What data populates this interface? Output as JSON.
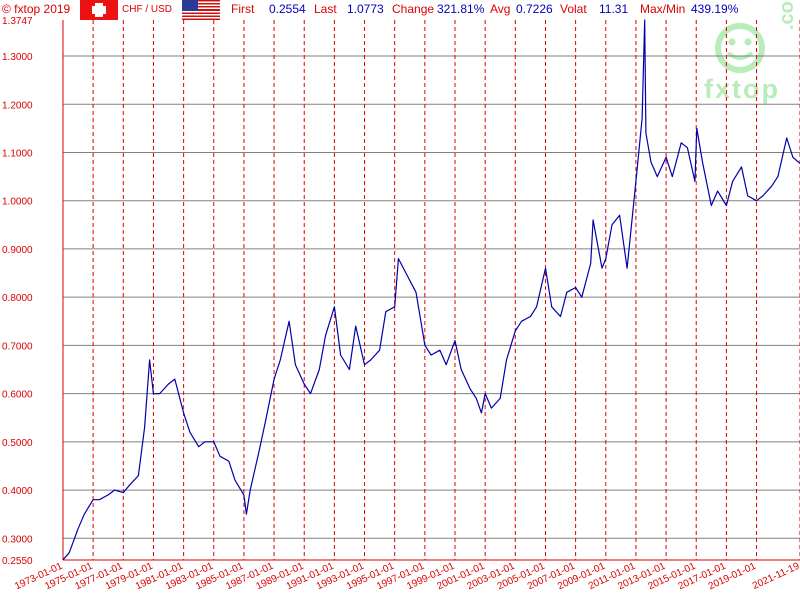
{
  "header": {
    "copyright": "© fxtop 2019",
    "pair": "CHF / USD",
    "first_label": "First",
    "first_value": "0.2554",
    "last_label": "Last",
    "last_value": "1.0773",
    "change_label": "Change",
    "change_value": "321.81%",
    "avg_label": "Avg",
    "avg_value": "0.7226",
    "volat_label": "Volat",
    "volat_value": "11.31",
    "maxmin_label": "Max/Min",
    "maxmin_value": "439.19%",
    "flag_left": "swiss-flag-icon",
    "flag_right": "us-flag-icon"
  },
  "logo": {
    "text": "fxtop",
    "suffix": ".com",
    "icon": "smiley-face-icon"
  },
  "colors": {
    "line": "#0000aa",
    "axis_text": "#dd0000",
    "vgrid": "#dd0000",
    "hgrid": "#808080",
    "logo": "#b8ecb8"
  },
  "chart_data": {
    "type": "line",
    "title": "",
    "xlabel": "",
    "ylabel": "",
    "ylim": [
      0.255,
      1.3747
    ],
    "xlim": [
      "1973-01-01",
      "2021-11-19"
    ],
    "yticks": [
      "1.3747",
      "1.3000",
      "1.2000",
      "1.1000",
      "1.0000",
      "0.9000",
      "0.8000",
      "0.7000",
      "0.6000",
      "0.5000",
      "0.4000",
      "0.3000",
      "0.2550"
    ],
    "xticks": [
      "1973-01-01",
      "1975-01-01",
      "1977-01-01",
      "1979-01-01",
      "1981-01-01",
      "1983-01-01",
      "1985-01-01",
      "1987-01-01",
      "1989-01-01",
      "1991-01-01",
      "1993-01-01",
      "1995-01-01",
      "1997-01-01",
      "1999-01-01",
      "2001-01-01",
      "2003-01-01",
      "2005-01-01",
      "2007-01-01",
      "2009-01-01",
      "2011-01-01",
      "2013-01-01",
      "2015-01-01",
      "2017-01-01",
      "2019-01-01",
      "2021-11-19"
    ],
    "grid": true,
    "series": [
      {
        "x": [
          "1973-01-01",
          "1973-06-01",
          "1974-01-01",
          "1974-06-01",
          "1975-01-01",
          "1975-06-01",
          "1976-01-01",
          "1976-06-01",
          "1977-01-01",
          "1977-06-01",
          "1978-01-01",
          "1978-06-01",
          "1978-10-01",
          "1979-01-01",
          "1979-06-01",
          "1980-01-01",
          "1980-06-01",
          "1981-01-01",
          "1981-06-01",
          "1982-01-01",
          "1982-06-01",
          "1983-01-01",
          "1983-06-01",
          "1984-01-01",
          "1984-06-01",
          "1985-01-01",
          "1985-03-01",
          "1985-06-01",
          "1986-01-01",
          "1986-06-01",
          "1987-01-01",
          "1987-06-01",
          "1988-01-01",
          "1988-06-01",
          "1989-01-01",
          "1989-06-01",
          "1990-01-01",
          "1990-06-01",
          "1991-01-01",
          "1991-06-01",
          "1992-01-01",
          "1992-06-01",
          "1993-01-01",
          "1993-06-01",
          "1994-01-01",
          "1994-06-01",
          "1995-01-01",
          "1995-04-01",
          "1995-10-01",
          "1996-06-01",
          "1997-01-01",
          "1997-06-01",
          "1998-01-01",
          "1998-06-01",
          "1999-01-01",
          "1999-06-01",
          "2000-01-01",
          "2000-06-01",
          "2000-10-01",
          "2001-01-01",
          "2001-06-01",
          "2002-01-01",
          "2002-06-01",
          "2003-01-01",
          "2003-06-01",
          "2004-01-01",
          "2004-06-01",
          "2005-01-01",
          "2005-06-01",
          "2006-01-01",
          "2006-06-01",
          "2007-01-01",
          "2007-06-01",
          "2008-01-01",
          "2008-03-01",
          "2008-10-01",
          "2009-01-01",
          "2009-06-01",
          "2009-12-01",
          "2010-06-01",
          "2011-01-01",
          "2011-06-01",
          "2011-08-01",
          "2011-09-01",
          "2012-01-01",
          "2012-06-01",
          "2013-01-01",
          "2013-06-01",
          "2014-01-01",
          "2014-06-01",
          "2014-12-01",
          "2015-01-15",
          "2015-06-01",
          "2016-01-01",
          "2016-06-01",
          "2017-01-01",
          "2017-06-01",
          "2018-01-01",
          "2018-06-01",
          "2019-01-01",
          "2019-06-01",
          "2020-01-01",
          "2020-06-01",
          "2021-01-01",
          "2021-06-01",
          "2021-11-19"
        ],
        "values": [
          0.2554,
          0.27,
          0.32,
          0.35,
          0.38,
          0.38,
          0.39,
          0.4,
          0.395,
          0.41,
          0.43,
          0.53,
          0.67,
          0.6,
          0.6,
          0.62,
          0.63,
          0.56,
          0.52,
          0.49,
          0.5,
          0.5,
          0.47,
          0.46,
          0.42,
          0.39,
          0.35,
          0.4,
          0.48,
          0.54,
          0.63,
          0.67,
          0.75,
          0.66,
          0.62,
          0.6,
          0.65,
          0.72,
          0.78,
          0.68,
          0.65,
          0.74,
          0.66,
          0.67,
          0.69,
          0.77,
          0.78,
          0.88,
          0.85,
          0.81,
          0.7,
          0.68,
          0.69,
          0.66,
          0.71,
          0.65,
          0.61,
          0.59,
          0.56,
          0.6,
          0.57,
          0.59,
          0.67,
          0.73,
          0.75,
          0.76,
          0.78,
          0.86,
          0.78,
          0.76,
          0.81,
          0.82,
          0.8,
          0.87,
          0.96,
          0.86,
          0.88,
          0.95,
          0.97,
          0.86,
          1.04,
          1.17,
          1.3747,
          1.14,
          1.08,
          1.05,
          1.09,
          1.05,
          1.12,
          1.11,
          1.04,
          1.15,
          1.08,
          0.99,
          1.02,
          0.99,
          1.04,
          1.07,
          1.01,
          1.0,
          1.01,
          1.03,
          1.05,
          1.13,
          1.09,
          1.0773
        ]
      }
    ]
  }
}
